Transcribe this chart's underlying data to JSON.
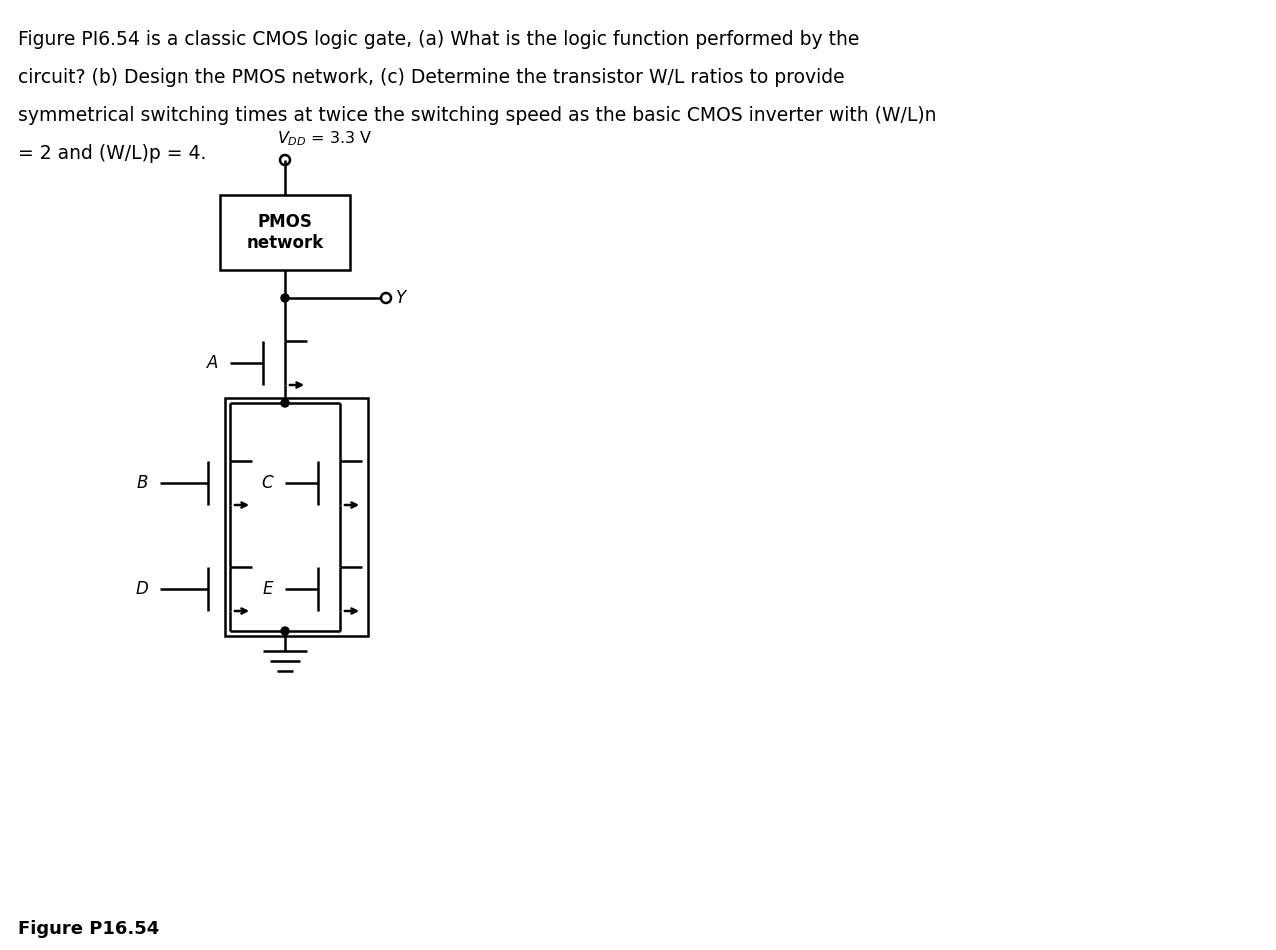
{
  "title_lines": [
    "Figure PI6.54 is a classic CMOS logic gate, (a) What is the logic function performed by the",
    "circuit? (b) Design the PMOS network, (c) Determine the transistor W/L ratios to provide",
    "symmetrical switching times at twice the switching speed as the basic CMOS inverter with (W/L)n",
    "= 2 and (W/L)p = 4."
  ],
  "figure_label": "Figure P16.54",
  "pmos_box_text": "PMOS\nnetwork",
  "output_label": "Y",
  "background_color": "#ffffff",
  "line_color": "#000000"
}
